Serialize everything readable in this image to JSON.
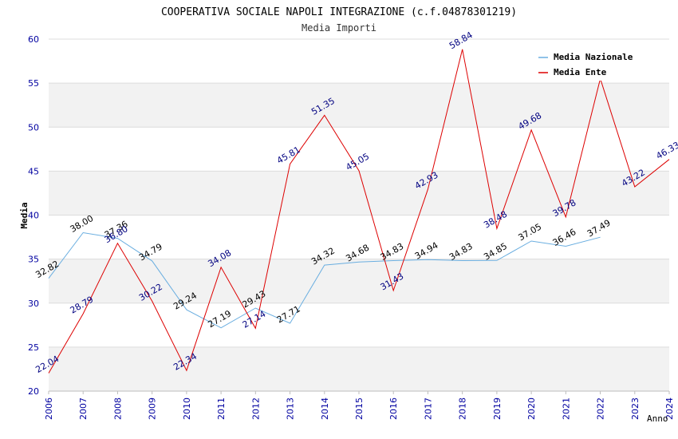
{
  "chart_data": {
    "type": "line",
    "title": "COOPERATIVA SOCIALE NAPOLI INTEGRAZIONE (c.f.04878301219)",
    "subtitle": "Media Importi",
    "xlabel": "Anno",
    "ylabel": "Media",
    "ylim": [
      20,
      60
    ],
    "yticks": [
      "20",
      "25",
      "30",
      "35",
      "40",
      "45",
      "50",
      "55",
      "60"
    ],
    "x": [
      "2006",
      "2007",
      "2008",
      "2009",
      "2010",
      "2011",
      "2012",
      "2013",
      "2014",
      "2015",
      "2016",
      "2017",
      "2018",
      "2019",
      "2020",
      "2021",
      "2022",
      "2023",
      "2024"
    ],
    "legend_position": "top-right",
    "grid": "horizontal alternating bands",
    "series": [
      {
        "name": "Media Nazionale",
        "color": "#6aaee0",
        "label_color": "#000000",
        "values": [
          32.82,
          38.0,
          37.36,
          34.79,
          29.24,
          27.19,
          29.43,
          27.71,
          34.32,
          34.68,
          34.83,
          34.94,
          34.83,
          34.85,
          37.05,
          36.46,
          37.49,
          null,
          null
        ],
        "labels": [
          "32.82",
          "38.00",
          "37.36",
          "34.79",
          "29.24",
          "27.19",
          "29.43",
          "27.71",
          "34.32",
          "34.68",
          "34.83",
          "34.94",
          "34.83",
          "34.85",
          "37.05",
          "36.46",
          "37.49",
          null,
          null
        ]
      },
      {
        "name": "Media Ente",
        "color": "#dd0000",
        "label_color": "#000080",
        "values": [
          22.04,
          28.79,
          36.8,
          30.22,
          22.34,
          34.08,
          27.14,
          45.81,
          51.35,
          45.05,
          31.43,
          42.93,
          58.84,
          38.48,
          49.68,
          39.78,
          55.5,
          43.22,
          46.33
        ],
        "labels": [
          "22.04",
          "28.79",
          "36.80",
          "30.22",
          "22.34",
          "34.08",
          "27.14",
          "45.81",
          "51.35",
          "45.05",
          "31.43",
          "42.93",
          "58.84",
          "38.48",
          "49.68",
          "39.78",
          null,
          "43.22",
          "46.33"
        ]
      }
    ]
  }
}
